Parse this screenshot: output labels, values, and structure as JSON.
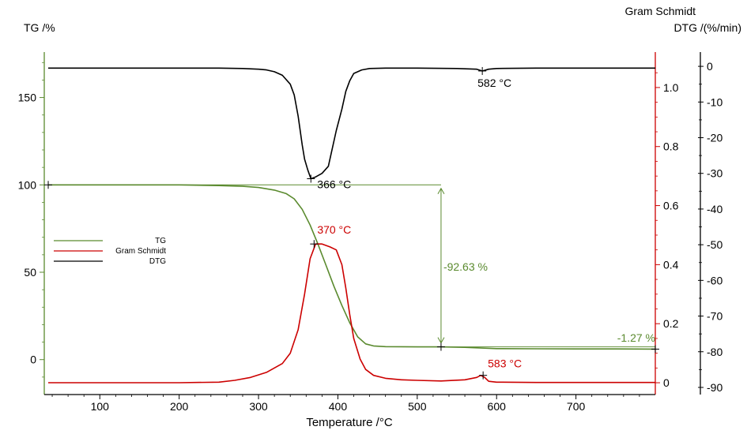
{
  "chart_data": {
    "type": "line",
    "xlabel": "Temperature /°C",
    "x_ticks": [
      100,
      200,
      300,
      400,
      500,
      600,
      700
    ],
    "xlim": [
      30,
      800
    ],
    "axes": {
      "tg": {
        "label": "TG /%",
        "ylim": [
          -20,
          176
        ],
        "ticks": [
          0,
          50,
          100,
          150
        ],
        "color": "#5a8a2e"
      },
      "gs": {
        "label": "Gram Schmidt",
        "ylim": [
          -0.04,
          1.12
        ],
        "ticks": [
          "0",
          "0.2",
          "0.4",
          "0.6",
          "0.8",
          "1.0"
        ],
        "color": "#cc0000"
      },
      "dtg": {
        "label": "DTG /(%/min)",
        "ylim": [
          -92,
          4
        ],
        "ticks": [
          0,
          -10,
          -20,
          -30,
          -40,
          -50,
          -60,
          -70,
          -80,
          -90
        ],
        "color": "#000000"
      }
    },
    "legend": {
      "position": "left-middle",
      "entries": [
        {
          "name": "TG",
          "color": "#5a8a2e"
        },
        {
          "name": "Gram Schmidt",
          "color": "#cc0000"
        },
        {
          "name": "DTG",
          "color": "#000000"
        }
      ]
    },
    "series": [
      {
        "name": "TG",
        "axis": "tg",
        "color": "#5a8a2e",
        "x": [
          35,
          100,
          200,
          250,
          280,
          300,
          320,
          335,
          345,
          355,
          365,
          375,
          385,
          395,
          405,
          415,
          425,
          435,
          445,
          460,
          500,
          530,
          560,
          600,
          650,
          700,
          750,
          800
        ],
        "y": [
          100,
          100,
          100,
          99.6,
          99.2,
          98.5,
          97,
          95,
          92,
          86,
          77,
          66,
          54,
          42,
          31,
          21,
          13,
          9,
          7.8,
          7.4,
          7.3,
          7.3,
          7.0,
          6.3,
          6.2,
          6.1,
          6.1,
          6.0
        ]
      },
      {
        "name": "Gram Schmidt",
        "axis": "gs",
        "color": "#cc0000",
        "x": [
          35,
          100,
          200,
          250,
          270,
          290,
          310,
          330,
          340,
          350,
          358,
          365,
          372,
          380,
          390,
          398,
          405,
          410,
          415,
          420,
          428,
          435,
          445,
          460,
          480,
          500,
          530,
          560,
          575,
          580,
          585,
          590,
          600,
          650,
          700,
          750,
          800
        ],
        "y": [
          0,
          0,
          0,
          0.002,
          0.008,
          0.018,
          0.035,
          0.065,
          0.1,
          0.18,
          0.3,
          0.42,
          0.47,
          0.47,
          0.46,
          0.45,
          0.4,
          0.32,
          0.23,
          0.15,
          0.08,
          0.045,
          0.025,
          0.015,
          0.01,
          0.008,
          0.006,
          0.01,
          0.018,
          0.025,
          0.018,
          0.005,
          0.002,
          0.001,
          0.001,
          0.001,
          0.001
        ]
      },
      {
        "name": "DTG",
        "axis": "dtg",
        "color": "#000000",
        "x": [
          35,
          100,
          200,
          250,
          280,
          300,
          310,
          320,
          330,
          340,
          345,
          350,
          355,
          358,
          362,
          366,
          372,
          380,
          388,
          392,
          398,
          405,
          410,
          415,
          420,
          430,
          440,
          460,
          500,
          550,
          575,
          582,
          590,
          600,
          650,
          700,
          750,
          800
        ],
        "y": [
          -0.5,
          -0.5,
          -0.5,
          -0.5,
          -0.6,
          -0.8,
          -1.0,
          -1.5,
          -2.5,
          -5,
          -8,
          -14,
          -22,
          -26,
          -29,
          -31.5,
          -31,
          -30,
          -28,
          -24,
          -18,
          -12,
          -7,
          -4,
          -2,
          -1,
          -0.6,
          -0.5,
          -0.5,
          -0.6,
          -0.8,
          -1.3,
          -0.8,
          -0.6,
          -0.5,
          -0.5,
          -0.5,
          -0.5
        ]
      }
    ],
    "annotations": [
      {
        "text": "366 °C",
        "axis": "dtg",
        "x": 366,
        "y": -31.5,
        "color": "#000000"
      },
      {
        "text": "582 °C",
        "axis": "dtg",
        "x": 582,
        "y": -1.3,
        "color": "#000000"
      },
      {
        "text": "370 °C",
        "axis": "gs",
        "x": 370,
        "y": 0.47,
        "color": "#cc0000"
      },
      {
        "text": "583 °C",
        "axis": "gs",
        "x": 583,
        "y": 0.025,
        "color": "#cc0000"
      },
      {
        "text": "-92.63 %",
        "axis": "tg",
        "x": 530,
        "y": 53.7,
        "color": "#5a8a2e"
      },
      {
        "text": "-1.27 %",
        "axis": "tg",
        "x": 800,
        "y": 6.7,
        "color": "#5a8a2e"
      }
    ],
    "step_markers": {
      "tg_start": {
        "x": 35,
        "y": 100
      },
      "tg_mid": {
        "x": 530,
        "y": 7.3
      },
      "tg_end": {
        "x": 800,
        "y": 6.0
      },
      "reference_line_x": [
        35,
        530
      ]
    }
  }
}
